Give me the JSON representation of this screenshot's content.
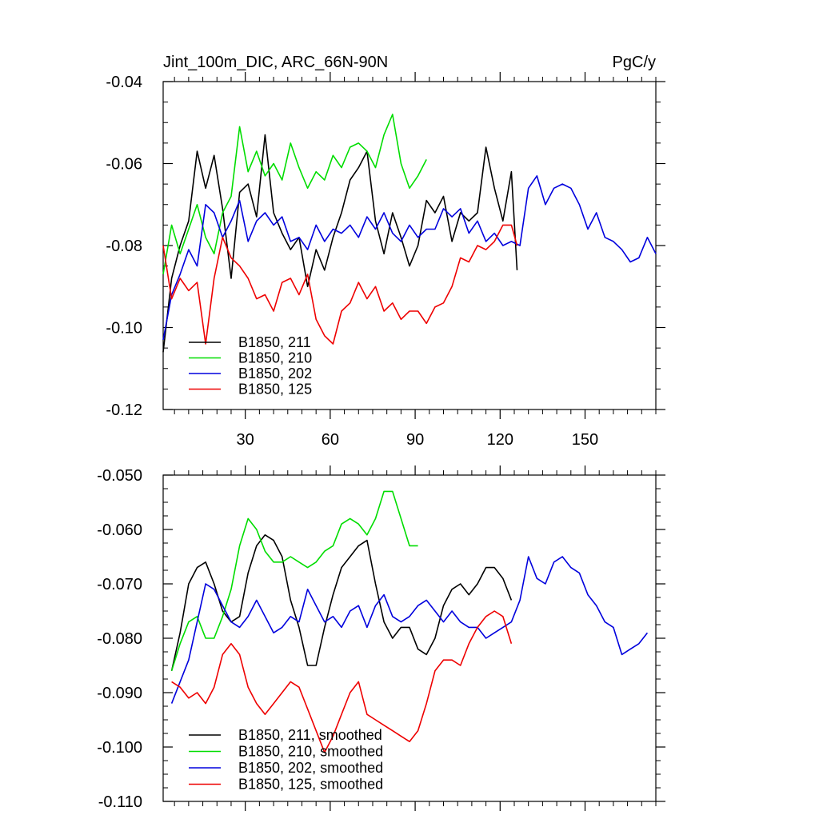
{
  "title_left": "Jint_100m_DIC, ARC_66N-90N",
  "title_right": "PgC/y",
  "chart_data": [
    {
      "type": "line",
      "title": "Jint_100m_DIC, ARC_66N-90N",
      "units": "PgC/y",
      "xlim": [
        1,
        175
      ],
      "ylim": [
        -0.12,
        -0.04
      ],
      "x_ticks": [
        30,
        60,
        90,
        120,
        150
      ],
      "x_tick_labels": [
        "30",
        "60",
        "90",
        "120",
        "150"
      ],
      "y_ticks": [
        -0.12,
        -0.1,
        -0.08,
        -0.06,
        -0.04
      ],
      "y_tick_labels": [
        "-0.12",
        "-0.10",
        "-0.08",
        "-0.06",
        "-0.04"
      ],
      "legend": "bottom-left",
      "series": [
        {
          "name": "B1850, 211",
          "color": "#000000",
          "x": [
            1,
            4,
            7,
            10,
            13,
            16,
            19,
            22,
            25,
            28,
            31,
            34,
            37,
            40,
            43,
            46,
            49,
            52,
            55,
            58,
            61,
            64,
            67,
            70,
            73,
            76,
            79,
            82,
            85,
            88,
            91,
            94,
            97,
            100,
            103,
            106,
            109,
            112,
            115,
            118,
            121,
            124,
            126
          ],
          "y": [
            -0.106,
            -0.088,
            -0.08,
            -0.074,
            -0.057,
            -0.066,
            -0.058,
            -0.071,
            -0.088,
            -0.067,
            -0.065,
            -0.073,
            -0.053,
            -0.072,
            -0.077,
            -0.081,
            -0.078,
            -0.09,
            -0.081,
            -0.086,
            -0.078,
            -0.072,
            -0.064,
            -0.061,
            -0.057,
            -0.074,
            -0.082,
            -0.072,
            -0.078,
            -0.085,
            -0.08,
            -0.069,
            -0.072,
            -0.068,
            -0.079,
            -0.072,
            -0.074,
            -0.072,
            -0.056,
            -0.066,
            -0.074,
            -0.062,
            -0.086
          ]
        },
        {
          "name": "B1850, 210",
          "color": "#00dd00",
          "x": [
            1,
            4,
            7,
            10,
            13,
            16,
            19,
            22,
            25,
            28,
            31,
            34,
            37,
            40,
            43,
            46,
            49,
            52,
            55,
            58,
            61,
            64,
            67,
            70,
            73,
            76,
            79,
            82,
            85,
            88,
            91,
            94
          ],
          "y": [
            -0.087,
            -0.075,
            -0.082,
            -0.076,
            -0.07,
            -0.078,
            -0.082,
            -0.072,
            -0.068,
            -0.051,
            -0.062,
            -0.057,
            -0.063,
            -0.06,
            -0.064,
            -0.055,
            -0.061,
            -0.066,
            -0.062,
            -0.064,
            -0.058,
            -0.061,
            -0.056,
            -0.055,
            -0.057,
            -0.061,
            -0.053,
            -0.048,
            -0.06,
            -0.066,
            -0.063,
            -0.059
          ]
        },
        {
          "name": "B1850, 202",
          "color": "#0000dd",
          "x": [
            1,
            4,
            7,
            10,
            13,
            16,
            19,
            22,
            25,
            28,
            31,
            34,
            37,
            40,
            43,
            46,
            49,
            52,
            55,
            58,
            61,
            64,
            67,
            70,
            73,
            76,
            79,
            82,
            85,
            88,
            91,
            94,
            97,
            100,
            103,
            106,
            109,
            112,
            115,
            118,
            121,
            124,
            127,
            130,
            133,
            136,
            139,
            142,
            145,
            148,
            151,
            154,
            157,
            160,
            163,
            166,
            169,
            172,
            175
          ],
          "y": [
            -0.103,
            -0.092,
            -0.087,
            -0.081,
            -0.085,
            -0.07,
            -0.072,
            -0.078,
            -0.074,
            -0.069,
            -0.079,
            -0.074,
            -0.072,
            -0.075,
            -0.073,
            -0.079,
            -0.078,
            -0.081,
            -0.075,
            -0.079,
            -0.076,
            -0.077,
            -0.075,
            -0.078,
            -0.073,
            -0.076,
            -0.072,
            -0.077,
            -0.079,
            -0.075,
            -0.078,
            -0.076,
            -0.076,
            -0.071,
            -0.073,
            -0.071,
            -0.077,
            -0.074,
            -0.079,
            -0.077,
            -0.08,
            -0.079,
            -0.08,
            -0.066,
            -0.063,
            -0.07,
            -0.066,
            -0.065,
            -0.066,
            -0.07,
            -0.076,
            -0.072,
            -0.078,
            -0.079,
            -0.081,
            -0.084,
            -0.083,
            -0.078,
            -0.082
          ]
        },
        {
          "name": "B1850, 125",
          "color": "#ee0000",
          "x": [
            1,
            4,
            7,
            10,
            13,
            16,
            19,
            22,
            25,
            28,
            31,
            34,
            37,
            40,
            43,
            46,
            49,
            52,
            55,
            58,
            61,
            64,
            67,
            70,
            73,
            76,
            79,
            82,
            85,
            88,
            91,
            94,
            97,
            100,
            103,
            106,
            109,
            112,
            115,
            118,
            121,
            124,
            126
          ],
          "y": [
            -0.08,
            -0.093,
            -0.088,
            -0.091,
            -0.089,
            -0.104,
            -0.088,
            -0.078,
            -0.083,
            -0.085,
            -0.088,
            -0.093,
            -0.092,
            -0.096,
            -0.089,
            -0.088,
            -0.092,
            -0.087,
            -0.098,
            -0.102,
            -0.104,
            -0.096,
            -0.094,
            -0.089,
            -0.093,
            -0.09,
            -0.096,
            -0.094,
            -0.098,
            -0.096,
            -0.096,
            -0.099,
            -0.095,
            -0.094,
            -0.09,
            -0.083,
            -0.084,
            -0.08,
            -0.081,
            -0.079,
            -0.075,
            -0.075,
            -0.08
          ]
        }
      ]
    },
    {
      "type": "line",
      "xlim": [
        1,
        175
      ],
      "ylim": [
        -0.11,
        -0.05
      ],
      "x_ticks": [
        30,
        60,
        90,
        120,
        150
      ],
      "x_tick_labels": [],
      "y_ticks": [
        -0.11,
        -0.1,
        -0.09,
        -0.08,
        -0.07,
        -0.06,
        -0.05
      ],
      "y_tick_labels": [
        "-0.110",
        "-0.100",
        "-0.090",
        "-0.080",
        "-0.070",
        "-0.060",
        "-0.050"
      ],
      "legend": "bottom-left",
      "series": [
        {
          "name": "B1850, 211, smoothed",
          "color": "#000000",
          "x": [
            4,
            7,
            10,
            13,
            16,
            19,
            22,
            25,
            28,
            31,
            34,
            37,
            40,
            43,
            46,
            49,
            52,
            55,
            58,
            61,
            64,
            67,
            70,
            73,
            76,
            79,
            82,
            85,
            88,
            91,
            94,
            97,
            100,
            103,
            106,
            109,
            112,
            115,
            118,
            121,
            124
          ],
          "y": [
            -0.086,
            -0.079,
            -0.07,
            -0.067,
            -0.066,
            -0.07,
            -0.075,
            -0.077,
            -0.076,
            -0.068,
            -0.063,
            -0.061,
            -0.062,
            -0.065,
            -0.073,
            -0.078,
            -0.085,
            -0.085,
            -0.078,
            -0.072,
            -0.067,
            -0.065,
            -0.063,
            -0.062,
            -0.07,
            -0.077,
            -0.08,
            -0.078,
            -0.078,
            -0.082,
            -0.083,
            -0.08,
            -0.074,
            -0.071,
            -0.07,
            -0.072,
            -0.07,
            -0.067,
            -0.067,
            -0.069,
            -0.073
          ]
        },
        {
          "name": "B1850, 210, smoothed",
          "color": "#00dd00",
          "x": [
            4,
            7,
            10,
            13,
            16,
            19,
            22,
            25,
            28,
            31,
            34,
            37,
            40,
            43,
            46,
            49,
            52,
            55,
            58,
            61,
            64,
            67,
            70,
            73,
            76,
            79,
            82,
            85,
            88,
            91
          ],
          "y": [
            -0.086,
            -0.081,
            -0.077,
            -0.076,
            -0.08,
            -0.08,
            -0.076,
            -0.071,
            -0.063,
            -0.058,
            -0.06,
            -0.064,
            -0.066,
            -0.066,
            -0.065,
            -0.066,
            -0.067,
            -0.066,
            -0.064,
            -0.063,
            -0.059,
            -0.058,
            -0.059,
            -0.061,
            -0.058,
            -0.053,
            -0.053,
            -0.058,
            -0.063,
            -0.063
          ]
        },
        {
          "name": "B1850, 202, smoothed",
          "color": "#0000dd",
          "x": [
            4,
            7,
            10,
            13,
            16,
            19,
            22,
            25,
            28,
            31,
            34,
            37,
            40,
            43,
            46,
            49,
            52,
            55,
            58,
            61,
            64,
            67,
            70,
            73,
            76,
            79,
            82,
            85,
            88,
            91,
            94,
            97,
            100,
            103,
            106,
            109,
            112,
            115,
            118,
            121,
            124,
            127,
            130,
            133,
            136,
            139,
            142,
            145,
            148,
            151,
            154,
            157,
            160,
            163,
            166,
            169,
            172
          ],
          "y": [
            -0.092,
            -0.088,
            -0.084,
            -0.077,
            -0.07,
            -0.071,
            -0.074,
            -0.077,
            -0.078,
            -0.076,
            -0.073,
            -0.076,
            -0.079,
            -0.078,
            -0.076,
            -0.077,
            -0.071,
            -0.074,
            -0.077,
            -0.076,
            -0.078,
            -0.075,
            -0.074,
            -0.078,
            -0.074,
            -0.072,
            -0.076,
            -0.077,
            -0.076,
            -0.074,
            -0.073,
            -0.075,
            -0.077,
            -0.075,
            -0.077,
            -0.078,
            -0.078,
            -0.08,
            -0.079,
            -0.078,
            -0.077,
            -0.073,
            -0.065,
            -0.069,
            -0.07,
            -0.066,
            -0.065,
            -0.067,
            -0.068,
            -0.072,
            -0.074,
            -0.077,
            -0.078,
            -0.083,
            -0.082,
            -0.081,
            -0.079
          ]
        },
        {
          "name": "B1850, 125, smoothed",
          "color": "#ee0000",
          "x": [
            4,
            7,
            10,
            13,
            16,
            19,
            22,
            25,
            28,
            31,
            34,
            37,
            40,
            43,
            46,
            49,
            52,
            55,
            58,
            61,
            64,
            67,
            70,
            73,
            76,
            79,
            82,
            85,
            88,
            91,
            94,
            97,
            100,
            103,
            106,
            109,
            112,
            115,
            118,
            121,
            124
          ],
          "y": [
            -0.088,
            -0.089,
            -0.091,
            -0.09,
            -0.092,
            -0.089,
            -0.083,
            -0.081,
            -0.083,
            -0.089,
            -0.092,
            -0.094,
            -0.092,
            -0.09,
            -0.088,
            -0.089,
            -0.093,
            -0.097,
            -0.101,
            -0.098,
            -0.094,
            -0.09,
            -0.088,
            -0.094,
            -0.095,
            -0.096,
            -0.097,
            -0.098,
            -0.099,
            -0.097,
            -0.092,
            -0.086,
            -0.084,
            -0.084,
            -0.085,
            -0.081,
            -0.078,
            -0.076,
            -0.075,
            -0.076,
            -0.081
          ]
        }
      ]
    }
  ]
}
